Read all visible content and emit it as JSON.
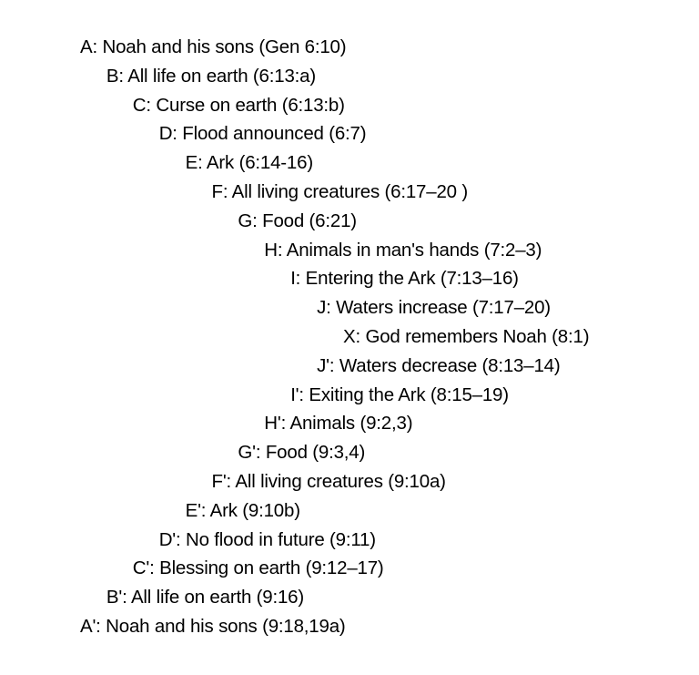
{
  "items": [
    "A: Noah and his sons (Gen 6:10)",
    "B: All life on earth (6:13:a)",
    "C: Curse on earth (6:13:b)",
    "D: Flood announced (6:7)",
    "E: Ark (6:14-16)",
    "F: All living creatures (6:17–20 )",
    "G: Food (6:21)",
    "H: Animals in man's hands (7:2–3)",
    "I: Entering the Ark (7:13–16)",
    "J: Waters increase (7:17–20)",
    "X: God remembers Noah (8:1)",
    "J': Waters decrease (8:13–14)",
    "I': Exiting the Ark (8:15–19)",
    "H': Animals (9:2,3)",
    "G': Food (9:3,4)",
    "F': All living creatures (9:10a)",
    "E': Ark (9:10b)",
    "D': No flood in future (9:11)",
    "C': Blessing on earth (9:12–17)",
    "B': All life on earth (9:16)",
    "A': Noah and his sons (9:18,19a)"
  ]
}
